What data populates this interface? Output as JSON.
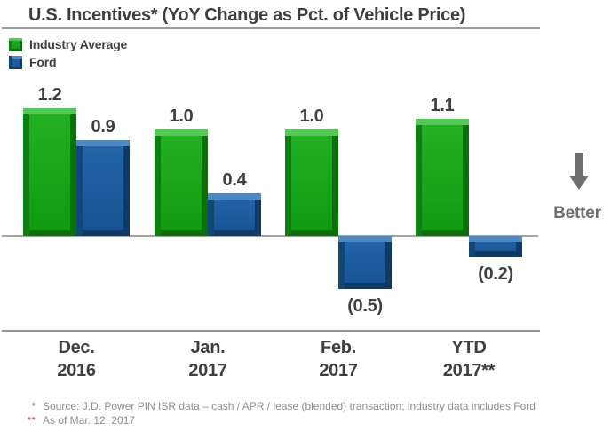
{
  "title": {
    "text": "U.S. Incentives* (YoY Change as Pct. of Vehicle Price)"
  },
  "legend": {
    "items": [
      {
        "label": "Industry Average",
        "color": "#18a118"
      },
      {
        "label": "Ford",
        "color": "#1d5ea1"
      }
    ]
  },
  "better_label": "Better",
  "chart_data": {
    "type": "bar",
    "title": "U.S. Incentives* (YoY Change as Pct. of Vehicle Price)",
    "categories": [
      "Dec. 2016",
      "Jan. 2017",
      "Feb. 2017",
      "YTD 2017**"
    ],
    "category_lines": [
      {
        "line1": "Dec.",
        "line2": "2016"
      },
      {
        "line1": "Jan.",
        "line2": "2017"
      },
      {
        "line1": "Feb.",
        "line2": "2017"
      },
      {
        "line1": "YTD",
        "line2": "2017**"
      }
    ],
    "series": [
      {
        "name": "Industry Average",
        "color": "#18a118",
        "values": [
          1.2,
          1.0,
          1.0,
          1.1
        ],
        "labels": [
          "1.2",
          "1.0",
          "1.0",
          "1.1"
        ]
      },
      {
        "name": "Ford",
        "color": "#1d5ea1",
        "values": [
          0.9,
          0.4,
          -0.5,
          -0.2
        ],
        "labels": [
          "0.9",
          "0.4",
          "(0.5)",
          "(0.2)"
        ]
      }
    ],
    "ylim": [
      -0.7,
      1.45
    ],
    "grid": false,
    "legend_position": "top-left",
    "negative_label_format": "parentheses",
    "annotation": {
      "text": "Better",
      "symbol": "down-arrow",
      "meaning": "lower is better"
    }
  },
  "footnotes": [
    {
      "marker": "*",
      "text": "Source:  J.D. Power PIN ISR data – cash / APR / lease (blended) transaction; industry data includes Ford"
    },
    {
      "marker": "**",
      "text": "As of Mar. 12, 2017"
    }
  ]
}
